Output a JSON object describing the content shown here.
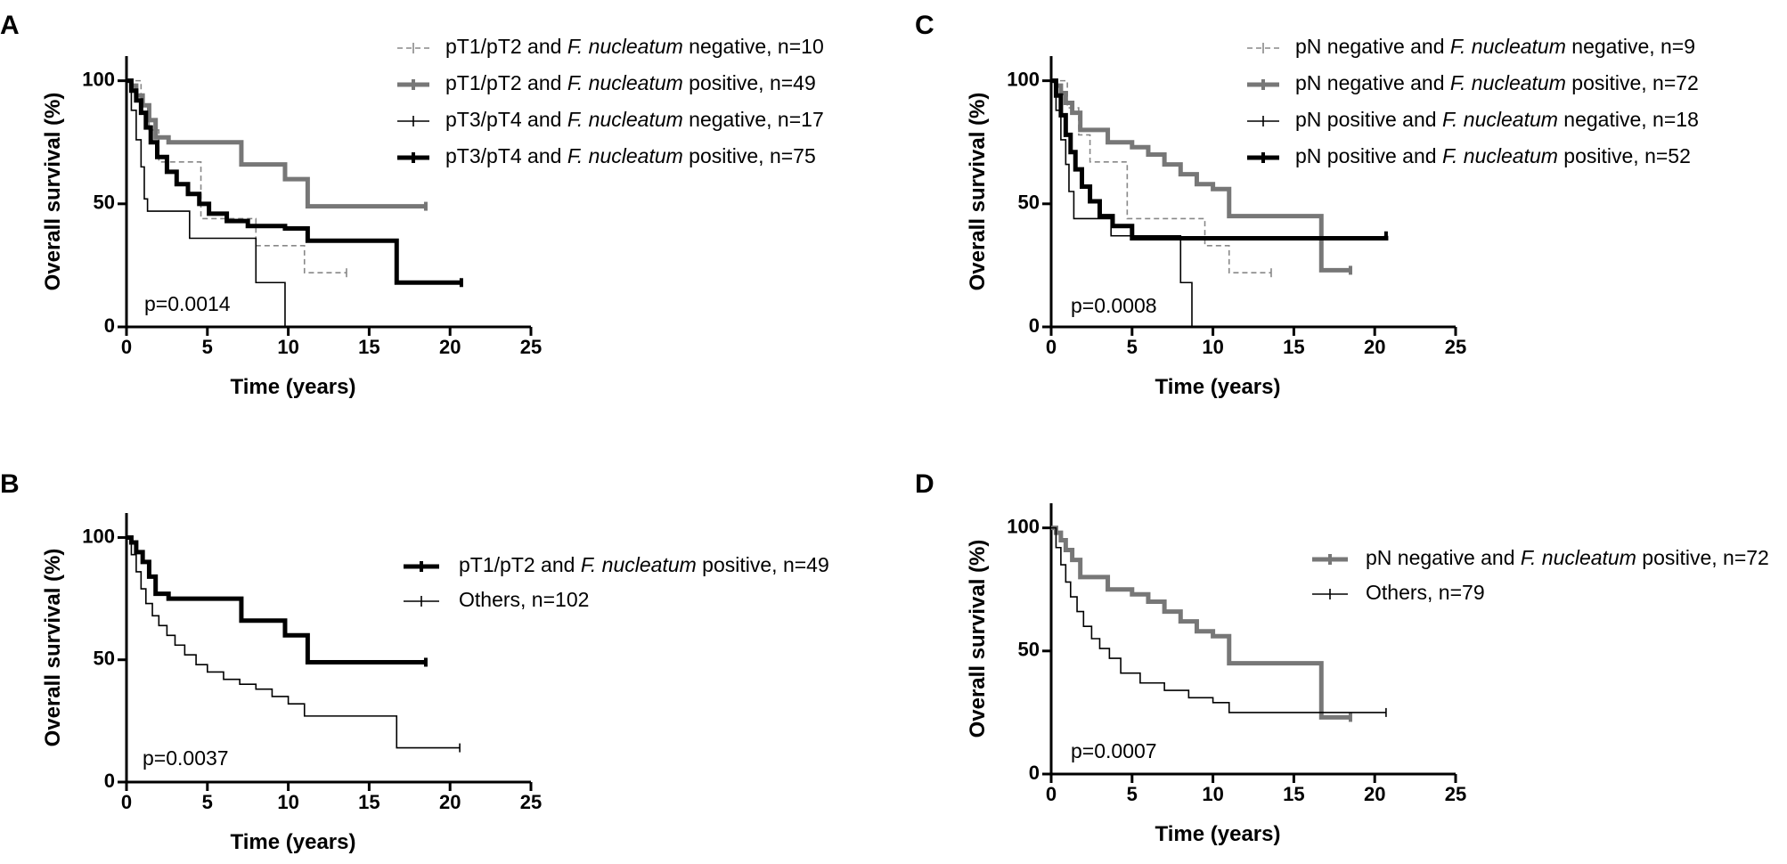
{
  "figure": {
    "panels": [
      "A",
      "B",
      "C",
      "D"
    ],
    "ylabel": "Overall survival (%)",
    "xlabel": "Time (years)"
  },
  "chart_data": [
    {
      "panel": "A",
      "type": "line",
      "subtype": "kaplan-meier",
      "xlabel": "Time (years)",
      "ylabel": "Overall survival (%)",
      "xlim": [
        0,
        25
      ],
      "ylim": [
        0,
        110
      ],
      "xticks": [
        "0",
        "5",
        "10",
        "15",
        "20",
        "25"
      ],
      "yticks": [
        "0",
        "50",
        "100"
      ],
      "annotation": "p=0.0014",
      "legend_position": "top-right",
      "series": [
        {
          "name": "pT1/pT2 and F. nucleatum negative, n=10",
          "label_pre": "pT1/pT2 and ",
          "label_italic": "F. nucleatum",
          "label_post": " negative, n=10",
          "style": "dashed",
          "color": "#888888",
          "x": [
            0,
            0.4,
            0.9,
            1.4,
            2.0,
            2.5,
            4.6,
            6.9,
            8.0,
            11.0,
            13.6
          ],
          "y": [
            100,
            100,
            90,
            80,
            67,
            67,
            44,
            44,
            33,
            22,
            22
          ]
        },
        {
          "name": "pT1/pT2 and F. nucleatum positive, n=49",
          "label_pre": "pT1/pT2 and ",
          "label_italic": "F. nucleatum",
          "label_post": " positive, n=49",
          "style": "thick",
          "color": "#777777",
          "x": [
            0,
            0.3,
            0.6,
            1.0,
            1.4,
            1.8,
            2.6,
            7.1,
            9.8,
            11.2,
            18.5
          ],
          "y": [
            100,
            98,
            94,
            90,
            84,
            77,
            75,
            66,
            60,
            49,
            49
          ]
        },
        {
          "name": "pT3/pT4 and F. nucleatum negative, n=17",
          "label_pre": "pT3/pT4 and ",
          "label_italic": "F. nucleatum",
          "label_post": " negative, n=17",
          "style": "thin",
          "color": "#000000",
          "x": [
            0,
            0.3,
            0.6,
            0.9,
            1.1,
            1.3,
            3.9,
            8.0,
            9.8
          ],
          "y": [
            100,
            88,
            76,
            65,
            52,
            47,
            36,
            18,
            0
          ]
        },
        {
          "name": "pT3/pT4 and F. nucleatum positive, n=75",
          "label_pre": "pT3/pT4 and ",
          "label_italic": "F. nucleatum",
          "label_post": " positive, n=75",
          "style": "thick",
          "color": "#000000",
          "x": [
            0,
            0.3,
            0.6,
            0.9,
            1.2,
            1.5,
            1.9,
            2.5,
            3.1,
            3.8,
            4.5,
            5.1,
            6.2,
            7.5,
            9.8,
            11.2,
            16.7,
            20.7
          ],
          "y": [
            100,
            96,
            92,
            87,
            81,
            75,
            69,
            63,
            58,
            54,
            50,
            46,
            43,
            41,
            40,
            35,
            18,
            18
          ]
        }
      ]
    },
    {
      "panel": "B",
      "type": "line",
      "subtype": "kaplan-meier",
      "xlabel": "Time (years)",
      "ylabel": "Overall survival (%)",
      "xlim": [
        0,
        25
      ],
      "ylim": [
        0,
        110
      ],
      "xticks": [
        "0",
        "5",
        "10",
        "15",
        "20",
        "25"
      ],
      "yticks": [
        "0",
        "50",
        "100"
      ],
      "annotation": "p=0.0037",
      "legend_position": "right",
      "series": [
        {
          "name": "pT1/pT2 and F. nucleatum positive, n=49",
          "label_pre": "pT1/pT2 and ",
          "label_italic": "F. nucleatum",
          "label_post": " positive, n=49",
          "style": "thick",
          "color": "#000000",
          "x": [
            0,
            0.3,
            0.6,
            1.0,
            1.4,
            1.8,
            2.6,
            7.1,
            9.8,
            11.2,
            18.5
          ],
          "y": [
            100,
            98,
            94,
            90,
            84,
            77,
            75,
            66,
            60,
            49,
            49
          ]
        },
        {
          "name": "Others, n=102",
          "label_pre": "Others, n=102",
          "label_italic": "",
          "label_post": "",
          "style": "thin",
          "color": "#000000",
          "x": [
            0,
            0.3,
            0.6,
            0.9,
            1.2,
            1.6,
            2.0,
            2.5,
            3.0,
            3.6,
            4.3,
            5.0,
            6.0,
            7.0,
            8.0,
            9.0,
            10.0,
            11.0,
            16.7,
            20.6
          ],
          "y": [
            100,
            93,
            86,
            79,
            73,
            68,
            64,
            60,
            56,
            52,
            48,
            45,
            42,
            40,
            38,
            35,
            32,
            27,
            14,
            14
          ]
        }
      ]
    },
    {
      "panel": "C",
      "type": "line",
      "subtype": "kaplan-meier",
      "xlabel": "Time (years)",
      "ylabel": "Overall survival (%)",
      "xlim": [
        0,
        25
      ],
      "ylim": [
        0,
        110
      ],
      "xticks": [
        "0",
        "5",
        "10",
        "15",
        "20",
        "25"
      ],
      "yticks": [
        "0",
        "50",
        "100"
      ],
      "annotation": "p=0.0008",
      "legend_position": "top-right",
      "series": [
        {
          "name": "pN negative and F. nucleatum negative, n=9",
          "label_pre": "pN negative and ",
          "label_italic": "F. nucleatum",
          "label_post": " negative, n=9",
          "style": "dashed",
          "color": "#888888",
          "x": [
            0,
            0.5,
            1.0,
            1.7,
            2.4,
            4.7,
            9.5,
            11.0,
            13.6
          ],
          "y": [
            100,
            100,
            89,
            78,
            67,
            44,
            33,
            22,
            22
          ]
        },
        {
          "name": "pN negative and F. nucleatum positive, n=72",
          "label_pre": "pN negative and ",
          "label_italic": "F. nucleatum",
          "label_post": " positive, n=72",
          "style": "thick",
          "color": "#777777",
          "x": [
            0,
            0.3,
            0.6,
            0.9,
            1.3,
            1.8,
            3.5,
            5.0,
            6.0,
            7.0,
            8.0,
            9.0,
            10.0,
            11.0,
            16.7,
            18.5
          ],
          "y": [
            100,
            98,
            95,
            91,
            87,
            80,
            75,
            73,
            70,
            66,
            62,
            58,
            56,
            45,
            23,
            23
          ]
        },
        {
          "name": "pN positive and F. nucleatum negative, n=18",
          "label_pre": "pN positive and ",
          "label_italic": "F. nucleatum",
          "label_post": " negative, n=18",
          "style": "thin",
          "color": "#000000",
          "x": [
            0,
            0.3,
            0.6,
            0.9,
            1.1,
            1.4,
            3.7,
            8.0,
            8.7
          ],
          "y": [
            100,
            88,
            76,
            66,
            55,
            44,
            37,
            18,
            0
          ]
        },
        {
          "name": "pN positive and F. nucleatum positive, n=52",
          "label_pre": "pN positive and ",
          "label_italic": "F. nucleatum",
          "label_post": " positive, n=52",
          "style": "thick",
          "color": "#000000",
          "x": [
            0,
            0.3,
            0.6,
            0.9,
            1.2,
            1.5,
            1.9,
            2.4,
            3.0,
            3.8,
            5.0,
            20.7
          ],
          "y": [
            100,
            94,
            86,
            78,
            71,
            64,
            57,
            51,
            45,
            41,
            36,
            37
          ]
        }
      ]
    },
    {
      "panel": "D",
      "type": "line",
      "subtype": "kaplan-meier",
      "xlabel": "Time (years)",
      "ylabel": "Overall survival (%)",
      "xlim": [
        0,
        25
      ],
      "ylim": [
        0,
        110
      ],
      "xticks": [
        "0",
        "5",
        "10",
        "15",
        "20",
        "25"
      ],
      "yticks": [
        "0",
        "50",
        "100"
      ],
      "annotation": "p=0.0007",
      "legend_position": "right",
      "series": [
        {
          "name": "pN negative and F. nucleatum positive, n=72",
          "label_pre": "pN negative and ",
          "label_italic": "F. nucleatum",
          "label_post": " positive, n=72",
          "style": "thick",
          "color": "#777777",
          "x": [
            0,
            0.3,
            0.6,
            0.9,
            1.3,
            1.8,
            3.5,
            5.0,
            6.0,
            7.0,
            8.0,
            9.0,
            10.0,
            11.0,
            16.7,
            18.5
          ],
          "y": [
            100,
            98,
            95,
            91,
            87,
            80,
            75,
            73,
            70,
            66,
            62,
            58,
            56,
            45,
            23,
            23
          ]
        },
        {
          "name": "Others, n=79",
          "label_pre": "Others, n=79",
          "label_italic": "",
          "label_post": "",
          "style": "thin",
          "color": "#000000",
          "x": [
            0,
            0.3,
            0.6,
            0.9,
            1.2,
            1.6,
            2.0,
            2.5,
            3.0,
            3.6,
            4.3,
            5.5,
            7.0,
            8.5,
            10.0,
            11.0,
            20.7
          ],
          "y": [
            100,
            92,
            85,
            78,
            72,
            66,
            60,
            55,
            51,
            47,
            41,
            37,
            34,
            31,
            29,
            25,
            25
          ]
        }
      ]
    }
  ]
}
